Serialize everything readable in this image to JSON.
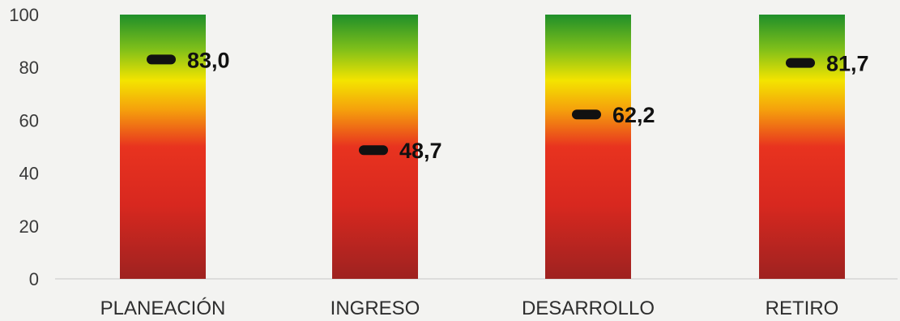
{
  "chart_data": {
    "type": "bar",
    "categories": [
      "PLANEACIÓN",
      "INGRESO",
      "DESARROLLO",
      "RETIRO"
    ],
    "values": [
      83.0,
      48.7,
      62.2,
      81.7
    ],
    "value_labels": [
      "83,0",
      "48,7",
      "62,2",
      "81,7"
    ],
    "bar_range": [
      0,
      100
    ],
    "ylim": [
      0,
      100
    ],
    "yticks": [
      0,
      20,
      40,
      60,
      80,
      100
    ],
    "title": "",
    "xlabel": "",
    "ylabel": "",
    "grid": false,
    "bar_gradient": [
      "#1f8f2a",
      "#f2e600",
      "#e8291f",
      "#a5231f"
    ],
    "marker_color": "#111111"
  }
}
